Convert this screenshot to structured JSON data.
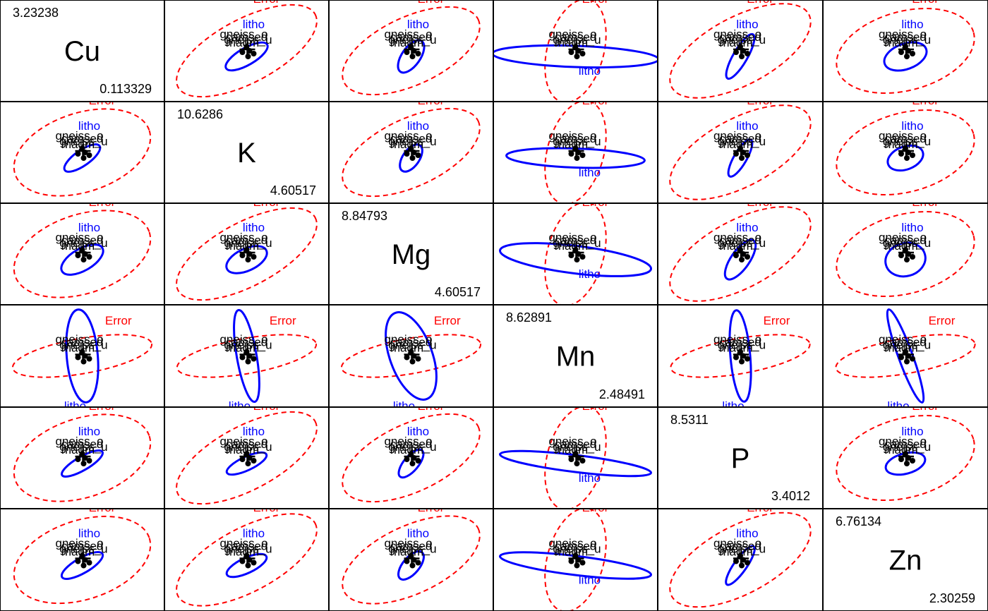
{
  "chart_data": {
    "type": "scatter",
    "variables": [
      "Cu",
      "K",
      "Mg",
      "Mn",
      "P",
      "Zn"
    ],
    "diagonal": [
      {
        "name": "Cu",
        "max": "3.23238",
        "min": "0.113329"
      },
      {
        "name": "K",
        "max": "10.6286",
        "min": "4.60517"
      },
      {
        "name": "Mg",
        "max": "8.84793",
        "min": "4.60517"
      },
      {
        "name": "Mn",
        "max": "8.62891",
        "min": "2.48491"
      },
      {
        "name": "P",
        "max": "8.5311",
        "min": "3.4012"
      },
      {
        "name": "Zn",
        "max": "6.76134",
        "min": "2.30259"
      }
    ],
    "group_labels": [
      "gneiss_o",
      "gneiss_u",
      "magm",
      "camsed"
    ],
    "hypothesis_label": "litho",
    "error_label": "Error",
    "colors": {
      "hypothesis": "#0000ff",
      "error": "#ff0000",
      "points": "#000000",
      "grid": "#000000"
    }
  }
}
